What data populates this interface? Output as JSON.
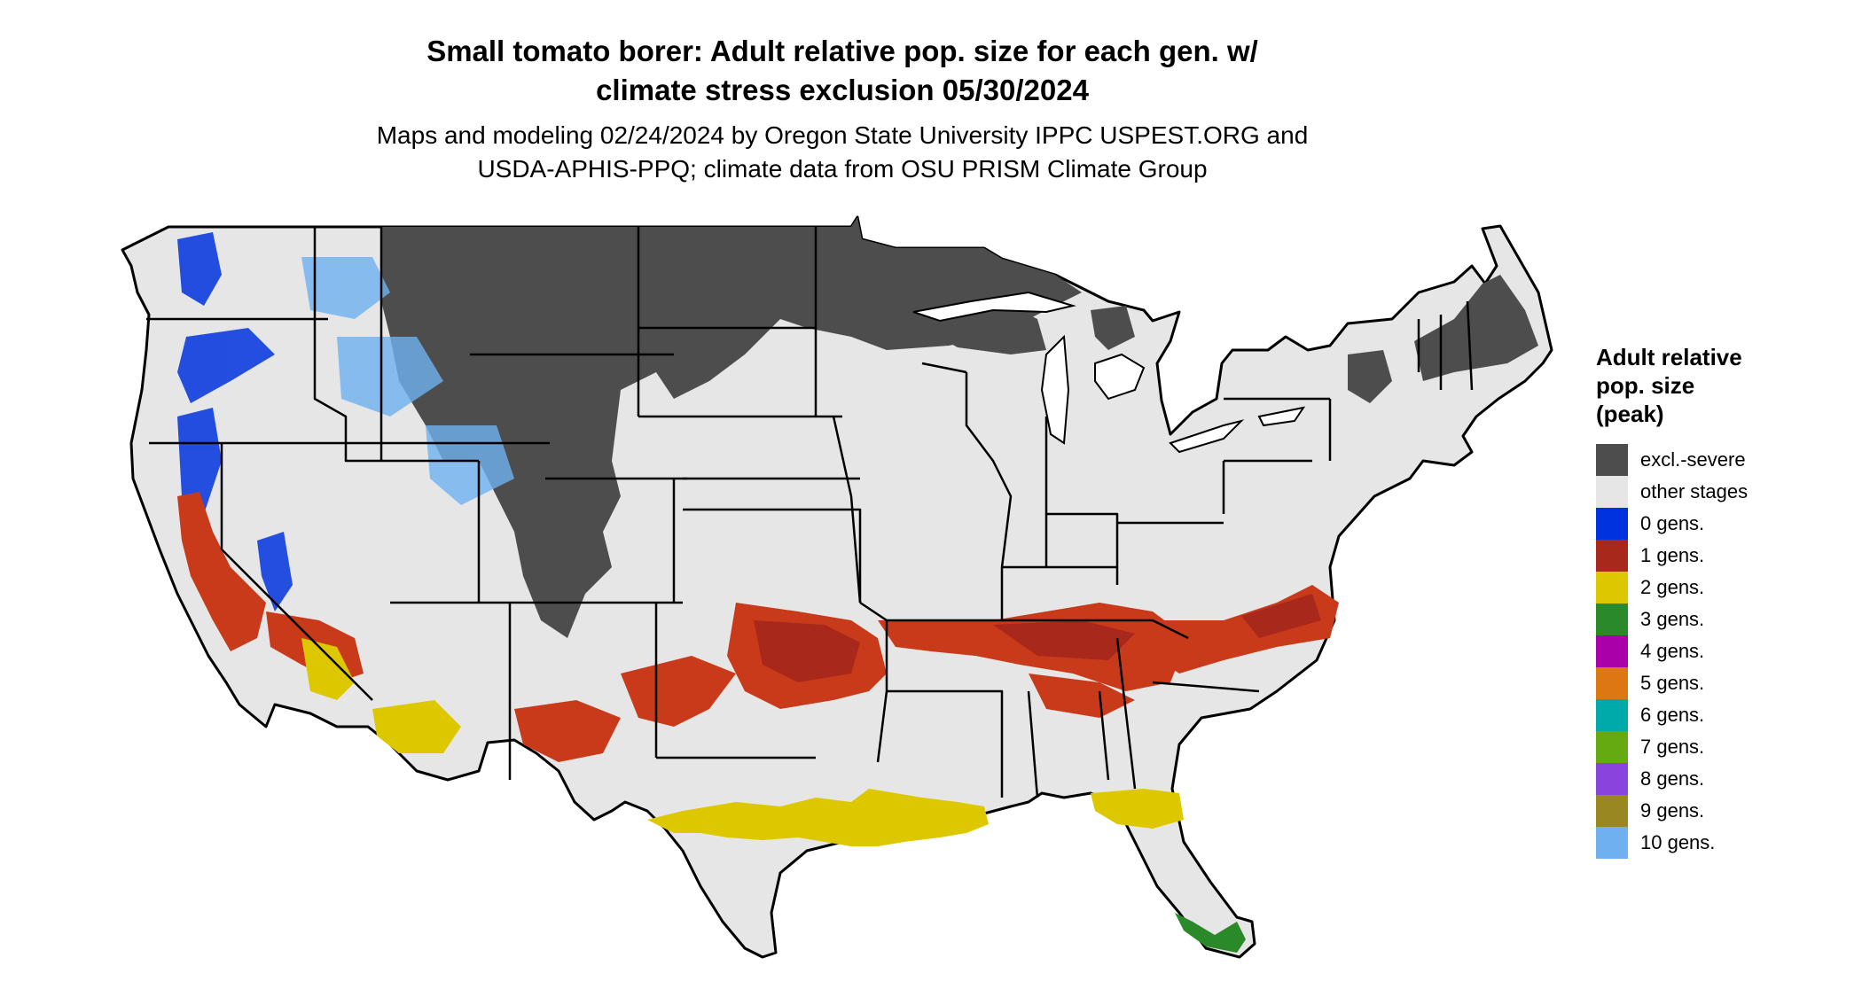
{
  "title": "Small tomato borer: Adult relative pop. size for each gen. w/\nclimate stress exclusion 05/30/2024",
  "subtitle": "Maps and modeling 02/24/2024 by Oregon State University IPPC USPEST.ORG and\nUSDA-APHIS-PPQ; climate data from OSU PRISM Climate Group",
  "legend": {
    "title": "Adult relative\npop. size\n(peak)",
    "items": [
      {
        "label": "excl.-severe",
        "color": "#4d4d4d"
      },
      {
        "label": "other stages",
        "color": "#e6e6e6"
      },
      {
        "label": "0 gens.",
        "color": "#0033dd"
      },
      {
        "label": "1 gens.",
        "color": "#a8291b"
      },
      {
        "label": "2 gens.",
        "color": "#ddc800"
      },
      {
        "label": "3 gens.",
        "color": "#2a8a2a"
      },
      {
        "label": "4 gens.",
        "color": "#aa00aa"
      },
      {
        "label": "5 gens.",
        "color": "#dd7711"
      },
      {
        "label": "6 gens.",
        "color": "#00aaaa"
      },
      {
        "label": "7 gens.",
        "color": "#66aa11"
      },
      {
        "label": "8 gens.",
        "color": "#8844dd"
      },
      {
        "label": "9 gens.",
        "color": "#998822"
      },
      {
        "label": "10 gens.",
        "color": "#6fb1f0"
      }
    ]
  }
}
